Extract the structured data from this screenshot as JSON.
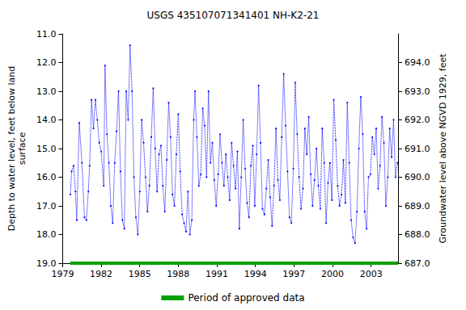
{
  "chart_data": {
    "type": "line",
    "title": "USGS 435107071341401 NH-K2-21",
    "y_label": "Depth to water level, feet below land\nsurface",
    "y2_label": "Groundwater level above NGVD 1929, feet",
    "xlim": [
      1979,
      2005.1
    ],
    "xticks": [
      1979,
      1982,
      1985,
      1988,
      1991,
      1994,
      1997,
      2000,
      2003
    ],
    "ylim": [
      11,
      19
    ],
    "yticks": [
      {
        "value": 11,
        "label": "11.0"
      },
      {
        "value": 12,
        "label": "12.0"
      },
      {
        "value": 13,
        "label": "13.0"
      },
      {
        "value": 14,
        "label": "14.0"
      },
      {
        "value": 15,
        "label": "15.0"
      },
      {
        "value": 16,
        "label": "16.0"
      },
      {
        "value": 17,
        "label": "17.0"
      },
      {
        "value": 18,
        "label": "18.0"
      },
      {
        "value": 19,
        "label": "19.0"
      }
    ],
    "y2lim": [
      687,
      695
    ],
    "y2ticks": [
      {
        "value": 687,
        "label": "687.0"
      },
      {
        "value": 688,
        "label": "688.0"
      },
      {
        "value": 689,
        "label": "689.0"
      },
      {
        "value": 690,
        "label": "690.0"
      },
      {
        "value": 691,
        "label": "691.0"
      },
      {
        "value": 692,
        "label": "692.0"
      },
      {
        "value": 693,
        "label": "693.0"
      },
      {
        "value": 694,
        "label": "694.0"
      }
    ],
    "grid": false,
    "legend": "bottom",
    "series": [
      {
        "color": "#0000ff",
        "marker": "circle",
        "line_style": "dotted",
        "axis": "y",
        "x": [
          1979.6,
          1979.7,
          1979.85,
          1980.0,
          1980.1,
          1980.3,
          1980.5,
          1980.7,
          1980.85,
          1981.0,
          1981.1,
          1981.25,
          1981.4,
          1981.55,
          1981.7,
          1981.85,
          1982.0,
          1982.2,
          1982.3,
          1982.45,
          1982.6,
          1982.75,
          1982.9,
          1983.05,
          1983.2,
          1983.35,
          1983.5,
          1983.65,
          1983.8,
          1983.95,
          1984.1,
          1984.25,
          1984.4,
          1984.55,
          1984.7,
          1984.85,
          1985.0,
          1985.15,
          1985.3,
          1985.45,
          1985.6,
          1985.75,
          1985.9,
          1986.05,
          1986.2,
          1986.35,
          1986.5,
          1986.65,
          1986.8,
          1986.95,
          1987.1,
          1987.25,
          1987.4,
          1987.55,
          1987.7,
          1987.85,
          1988.0,
          1988.15,
          1988.3,
          1988.45,
          1988.6,
          1988.75,
          1988.9,
          1989.05,
          1989.2,
          1989.3,
          1989.45,
          1989.6,
          1989.75,
          1989.9,
          1990.05,
          1990.2,
          1990.35,
          1990.5,
          1990.65,
          1990.8,
          1990.95,
          1991.1,
          1991.25,
          1991.4,
          1991.55,
          1991.7,
          1991.85,
          1992.0,
          1992.15,
          1992.3,
          1992.45,
          1992.6,
          1992.75,
          1992.9,
          1993.05,
          1993.2,
          1993.35,
          1993.5,
          1993.65,
          1993.8,
          1993.95,
          1994.1,
          1994.25,
          1994.4,
          1994.55,
          1994.7,
          1994.85,
          1995.0,
          1995.15,
          1995.3,
          1995.45,
          1995.6,
          1995.75,
          1995.9,
          1996.05,
          1996.2,
          1996.35,
          1996.5,
          1996.65,
          1996.8,
          1996.95,
          1997.1,
          1997.25,
          1997.4,
          1997.55,
          1997.7,
          1997.85,
          1998.0,
          1998.15,
          1998.3,
          1998.45,
          1998.6,
          1998.75,
          1998.9,
          1999.05,
          1999.2,
          1999.35,
          1999.5,
          1999.65,
          1999.8,
          1999.95,
          2000.1,
          2000.25,
          2000.4,
          2000.55,
          2000.7,
          2000.85,
          2001.0,
          2001.15,
          2001.3,
          2001.45,
          2001.6,
          2001.75,
          2001.9,
          2002.05,
          2002.2,
          2002.35,
          2002.5,
          2002.65,
          2002.8,
          2002.95,
          2003.1,
          2003.25,
          2003.4,
          2003.55,
          2003.7,
          2003.85,
          2004.0,
          2004.15,
          2004.3,
          2004.45,
          2004.6,
          2004.75,
          2004.9,
          2005.05
        ],
        "values": [
          16.6,
          15.8,
          15.6,
          16.5,
          17.5,
          14.1,
          15.5,
          17.4,
          17.5,
          16.5,
          15.6,
          13.3,
          14.3,
          13.3,
          14.0,
          14.8,
          15.1,
          16.3,
          12.1,
          14.5,
          15.5,
          17.0,
          17.6,
          15.5,
          14.4,
          13.0,
          15.8,
          17.5,
          17.8,
          13.0,
          14.0,
          11.4,
          13.0,
          16.0,
          17.4,
          18.0,
          16.5,
          14.0,
          14.8,
          16.0,
          17.2,
          16.3,
          14.6,
          12.9,
          15.0,
          16.5,
          15.2,
          14.9,
          16.3,
          17.2,
          15.4,
          13.4,
          14.6,
          16.6,
          17.0,
          15.2,
          13.8,
          15.8,
          17.3,
          17.6,
          17.9,
          16.5,
          18.0,
          17.5,
          14.0,
          13.0,
          14.6,
          16.3,
          15.9,
          13.6,
          14.2,
          16.0,
          13.0,
          15.5,
          14.8,
          16.1,
          17.0,
          15.9,
          14.5,
          15.5,
          16.3,
          15.2,
          16.0,
          16.8,
          14.8,
          15.6,
          16.4,
          15.1,
          17.8,
          16.0,
          14.0,
          15.7,
          16.9,
          17.4,
          15.6,
          14.9,
          17.0,
          15.2,
          12.8,
          14.8,
          17.1,
          17.3,
          16.4,
          15.4,
          16.7,
          17.7,
          16.3,
          14.3,
          16.1,
          16.8,
          14.6,
          12.4,
          14.2,
          15.8,
          17.4,
          17.6,
          15.7,
          12.7,
          14.5,
          16.0,
          17.1,
          16.4,
          14.3,
          15.2,
          13.9,
          15.9,
          17.0,
          16.1,
          15.0,
          16.3,
          17.1,
          14.3,
          15.5,
          17.6,
          16.2,
          15.5,
          16.8,
          13.3,
          14.7,
          16.3,
          17.0,
          16.6,
          15.4,
          16.9,
          13.4,
          15.5,
          17.5,
          18.1,
          18.3,
          17.2,
          15.0,
          13.2,
          14.5,
          17.2,
          17.8,
          16.0,
          15.9,
          14.6,
          15.2,
          14.3,
          16.4,
          15.6,
          13.9,
          14.8,
          17.0,
          16.0,
          14.3,
          15.3,
          14.0,
          16.0,
          15.5
        ]
      },
      {
        "name": "Period of approved data",
        "color": "#00a000",
        "line_style": "solid",
        "axis": "y",
        "x": [
          1979.6,
          2005.1
        ],
        "values": [
          19,
          19
        ]
      }
    ]
  }
}
